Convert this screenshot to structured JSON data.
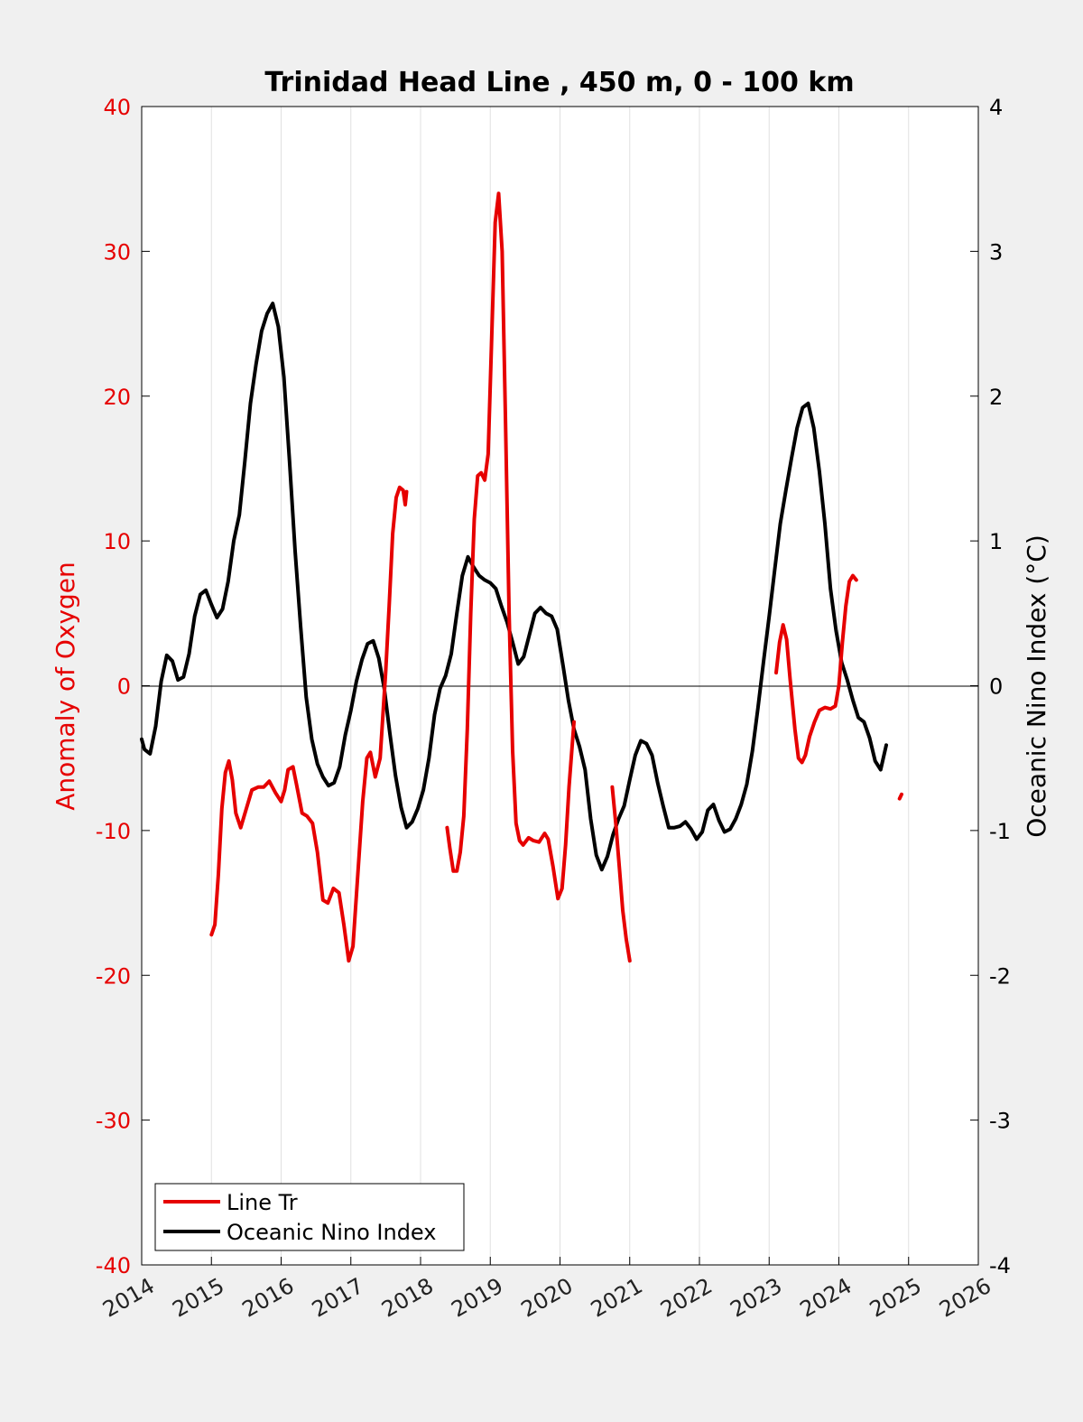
{
  "chart_data": {
    "type": "line",
    "title": "Trinidad Head Line , 450 m, 0 - 100 km",
    "xlabel": "",
    "ylabel_left": "Anomaly of Oxygen",
    "ylabel_right": "Oceanic Nino Index (°C)",
    "xlim": [
      2014,
      2026
    ],
    "ylim_left": [
      -40,
      40
    ],
    "ylim_right": [
      -4,
      4
    ],
    "x_ticks": [
      "2014",
      "2015",
      "2016",
      "2017",
      "2018",
      "2019",
      "2020",
      "2021",
      "2022",
      "2023",
      "2024",
      "2025",
      "2026"
    ],
    "y_ticks_left": [
      "40",
      "30",
      "20",
      "10",
      "0",
      "-10",
      "-20",
      "-30",
      "-40"
    ],
    "y_ticks_right": [
      "4",
      "3",
      "2",
      "1",
      "0",
      "-1",
      "-2",
      "-3",
      "-4"
    ],
    "grid": "vertical",
    "zero_line": true,
    "legend_position": "bottom-left",
    "colors": {
      "oxygen": "#e60000",
      "oni": "#000000",
      "plot_bg": "#ffffff",
      "figure_bg": "#f0f0f0",
      "grid": "#e0e0e0"
    },
    "series": [
      {
        "name": "Line Tr",
        "axis": "left",
        "segments": [
          [
            [
              2015.0,
              -17.2
            ],
            [
              2015.05,
              -16.5
            ],
            [
              2015.1,
              -13.0
            ],
            [
              2015.15,
              -8.5
            ],
            [
              2015.2,
              -6.0
            ],
            [
              2015.25,
              -5.2
            ],
            [
              2015.3,
              -6.5
            ],
            [
              2015.35,
              -8.8
            ],
            [
              2015.42,
              -9.8
            ],
            [
              2015.5,
              -8.5
            ],
            [
              2015.58,
              -7.2
            ],
            [
              2015.67,
              -7.0
            ],
            [
              2015.75,
              -7.0
            ],
            [
              2015.83,
              -6.6
            ],
            [
              2015.92,
              -7.4
            ],
            [
              2016.0,
              -8.0
            ],
            [
              2016.05,
              -7.2
            ],
            [
              2016.1,
              -5.8
            ],
            [
              2016.17,
              -5.6
            ],
            [
              2016.22,
              -6.8
            ],
            [
              2016.3,
              -8.8
            ],
            [
              2016.37,
              -9.0
            ],
            [
              2016.45,
              -9.5
            ],
            [
              2016.52,
              -11.5
            ],
            [
              2016.6,
              -14.8
            ],
            [
              2016.67,
              -15.0
            ],
            [
              2016.75,
              -14.0
            ],
            [
              2016.83,
              -14.3
            ],
            [
              2016.9,
              -16.5
            ],
            [
              2016.97,
              -19.0
            ],
            [
              2017.03,
              -18.0
            ],
            [
              2017.1,
              -13.0
            ],
            [
              2017.17,
              -8.0
            ],
            [
              2017.23,
              -5.0
            ],
            [
              2017.28,
              -4.6
            ],
            [
              2017.35,
              -6.3
            ],
            [
              2017.42,
              -5.0
            ],
            [
              2017.5,
              1.0
            ],
            [
              2017.55,
              5.5
            ],
            [
              2017.6,
              10.5
            ],
            [
              2017.65,
              13.0
            ],
            [
              2017.7,
              13.7
            ],
            [
              2017.75,
              13.5
            ],
            [
              2017.78,
              12.5
            ],
            [
              2017.8,
              13.4
            ]
          ],
          [
            [
              2018.38,
              -9.8
            ],
            [
              2018.42,
              -11.2
            ],
            [
              2018.47,
              -12.8
            ],
            [
              2018.52,
              -12.8
            ],
            [
              2018.57,
              -11.5
            ],
            [
              2018.62,
              -9.0
            ],
            [
              2018.67,
              -3.0
            ],
            [
              2018.72,
              5.0
            ],
            [
              2018.77,
              11.5
            ],
            [
              2018.82,
              14.5
            ],
            [
              2018.87,
              14.7
            ],
            [
              2018.92,
              14.2
            ],
            [
              2018.97,
              16.0
            ],
            [
              2019.02,
              24.0
            ],
            [
              2019.07,
              32.0
            ],
            [
              2019.12,
              34.0
            ],
            [
              2019.17,
              30.0
            ],
            [
              2019.22,
              18.0
            ],
            [
              2019.27,
              5.0
            ],
            [
              2019.32,
              -4.5
            ],
            [
              2019.37,
              -9.5
            ],
            [
              2019.42,
              -10.7
            ],
            [
              2019.47,
              -11.0
            ],
            [
              2019.55,
              -10.5
            ],
            [
              2019.62,
              -10.7
            ],
            [
              2019.7,
              -10.8
            ],
            [
              2019.78,
              -10.2
            ],
            [
              2019.83,
              -10.6
            ],
            [
              2019.9,
              -12.5
            ],
            [
              2019.97,
              -14.7
            ],
            [
              2020.03,
              -14.0
            ],
            [
              2020.08,
              -11.0
            ],
            [
              2020.13,
              -7.0
            ],
            [
              2020.2,
              -2.5
            ]
          ],
          [
            [
              2020.75,
              -7.0
            ],
            [
              2020.8,
              -9.5
            ],
            [
              2020.85,
              -12.5
            ],
            [
              2020.9,
              -15.5
            ],
            [
              2020.95,
              -17.5
            ],
            [
              2021.0,
              -19.0
            ]
          ],
          [
            [
              2023.1,
              0.9
            ],
            [
              2023.15,
              3.0
            ],
            [
              2023.2,
              4.2
            ],
            [
              2023.25,
              3.2
            ],
            [
              2023.3,
              0.5
            ],
            [
              2023.37,
              -3.0
            ],
            [
              2023.42,
              -5.0
            ],
            [
              2023.47,
              -5.3
            ],
            [
              2023.52,
              -4.8
            ],
            [
              2023.58,
              -3.5
            ],
            [
              2023.65,
              -2.5
            ],
            [
              2023.72,
              -1.7
            ],
            [
              2023.8,
              -1.5
            ],
            [
              2023.88,
              -1.6
            ],
            [
              2023.95,
              -1.4
            ],
            [
              2024.0,
              0.0
            ],
            [
              2024.05,
              3.0
            ],
            [
              2024.1,
              5.5
            ],
            [
              2024.15,
              7.2
            ],
            [
              2024.2,
              7.6
            ],
            [
              2024.25,
              7.3
            ]
          ],
          [
            [
              2024.87,
              -7.8
            ],
            [
              2024.9,
              -7.5
            ]
          ]
        ]
      },
      {
        "name": "Oceanic Nino Index",
        "axis": "right",
        "segments": [
          [
            [
              2014.0,
              -0.37
            ],
            [
              2014.04,
              -0.44
            ],
            [
              2014.12,
              -0.47
            ],
            [
              2014.2,
              -0.28
            ],
            [
              2014.28,
              0.03
            ],
            [
              2014.36,
              0.21
            ],
            [
              2014.44,
              0.17
            ],
            [
              2014.52,
              0.04
            ],
            [
              2014.6,
              0.06
            ],
            [
              2014.68,
              0.22
            ],
            [
              2014.76,
              0.48
            ],
            [
              2014.84,
              0.63
            ],
            [
              2014.92,
              0.66
            ],
            [
              2015.0,
              0.56
            ],
            [
              2015.08,
              0.47
            ],
            [
              2015.16,
              0.53
            ],
            [
              2015.24,
              0.72
            ],
            [
              2015.32,
              1.0
            ],
            [
              2015.4,
              1.18
            ],
            [
              2015.48,
              1.55
            ],
            [
              2015.56,
              1.95
            ],
            [
              2015.64,
              2.22
            ],
            [
              2015.72,
              2.45
            ],
            [
              2015.8,
              2.57
            ],
            [
              2015.88,
              2.64
            ],
            [
              2015.96,
              2.48
            ],
            [
              2016.04,
              2.13
            ],
            [
              2016.12,
              1.55
            ],
            [
              2016.2,
              0.93
            ],
            [
              2016.28,
              0.41
            ],
            [
              2016.36,
              -0.08
            ],
            [
              2016.44,
              -0.37
            ],
            [
              2016.52,
              -0.54
            ],
            [
              2016.6,
              -0.63
            ],
            [
              2016.68,
              -0.69
            ],
            [
              2016.76,
              -0.67
            ],
            [
              2016.84,
              -0.56
            ],
            [
              2016.92,
              -0.34
            ],
            [
              2017.0,
              -0.17
            ],
            [
              2017.08,
              0.03
            ],
            [
              2017.16,
              0.18
            ],
            [
              2017.24,
              0.29
            ],
            [
              2017.32,
              0.31
            ],
            [
              2017.4,
              0.19
            ],
            [
              2017.48,
              -0.02
            ],
            [
              2017.56,
              -0.33
            ],
            [
              2017.64,
              -0.62
            ],
            [
              2017.72,
              -0.84
            ],
            [
              2017.8,
              -0.98
            ],
            [
              2017.88,
              -0.94
            ],
            [
              2017.96,
              -0.85
            ],
            [
              2018.04,
              -0.72
            ],
            [
              2018.12,
              -0.5
            ],
            [
              2018.2,
              -0.2
            ],
            [
              2018.28,
              -0.02
            ],
            [
              2018.36,
              0.07
            ],
            [
              2018.44,
              0.22
            ],
            [
              2018.52,
              0.5
            ],
            [
              2018.6,
              0.76
            ],
            [
              2018.68,
              0.89
            ],
            [
              2018.76,
              0.82
            ],
            [
              2018.84,
              0.76
            ],
            [
              2018.92,
              0.73
            ],
            [
              2019.0,
              0.71
            ],
            [
              2019.08,
              0.67
            ],
            [
              2019.16,
              0.55
            ],
            [
              2019.24,
              0.44
            ],
            [
              2019.32,
              0.3
            ],
            [
              2019.4,
              0.15
            ],
            [
              2019.48,
              0.2
            ],
            [
              2019.56,
              0.35
            ],
            [
              2019.64,
              0.5
            ],
            [
              2019.72,
              0.54
            ],
            [
              2019.8,
              0.5
            ],
            [
              2019.88,
              0.48
            ],
            [
              2019.96,
              0.39
            ],
            [
              2020.04,
              0.15
            ],
            [
              2020.12,
              -0.1
            ],
            [
              2020.2,
              -0.3
            ],
            [
              2020.28,
              -0.42
            ],
            [
              2020.36,
              -0.58
            ],
            [
              2020.44,
              -0.92
            ],
            [
              2020.52,
              -1.17
            ],
            [
              2020.6,
              -1.27
            ],
            [
              2020.68,
              -1.18
            ],
            [
              2020.76,
              -1.03
            ],
            [
              2020.84,
              -0.92
            ],
            [
              2020.92,
              -0.83
            ],
            [
              2021.0,
              -0.65
            ],
            [
              2021.08,
              -0.48
            ],
            [
              2021.16,
              -0.38
            ],
            [
              2021.24,
              -0.4
            ],
            [
              2021.32,
              -0.48
            ],
            [
              2021.4,
              -0.67
            ],
            [
              2021.48,
              -0.83
            ],
            [
              2021.56,
              -0.98
            ],
            [
              2021.64,
              -0.98
            ],
            [
              2021.72,
              -0.97
            ],
            [
              2021.8,
              -0.94
            ],
            [
              2021.88,
              -0.99
            ],
            [
              2021.96,
              -1.06
            ],
            [
              2022.04,
              -1.01
            ],
            [
              2022.12,
              -0.86
            ],
            [
              2022.2,
              -0.82
            ],
            [
              2022.28,
              -0.93
            ],
            [
              2022.36,
              -1.01
            ],
            [
              2022.44,
              -0.99
            ],
            [
              2022.52,
              -0.92
            ],
            [
              2022.6,
              -0.82
            ],
            [
              2022.68,
              -0.68
            ],
            [
              2022.76,
              -0.45
            ],
            [
              2022.84,
              -0.15
            ],
            [
              2022.92,
              0.17
            ],
            [
              2023.0,
              0.48
            ],
            [
              2023.08,
              0.8
            ],
            [
              2023.16,
              1.12
            ],
            [
              2023.24,
              1.35
            ],
            [
              2023.32,
              1.57
            ],
            [
              2023.4,
              1.78
            ],
            [
              2023.48,
              1.92
            ],
            [
              2023.56,
              1.95
            ],
            [
              2023.64,
              1.78
            ],
            [
              2023.72,
              1.48
            ],
            [
              2023.8,
              1.12
            ],
            [
              2023.88,
              0.67
            ],
            [
              2023.96,
              0.38
            ],
            [
              2024.04,
              0.16
            ],
            [
              2024.12,
              0.04
            ],
            [
              2024.2,
              -0.1
            ],
            [
              2024.28,
              -0.22
            ],
            [
              2024.36,
              -0.25
            ],
            [
              2024.44,
              -0.36
            ],
            [
              2024.52,
              -0.52
            ],
            [
              2024.6,
              -0.58
            ],
            [
              2024.68,
              -0.41
            ]
          ]
        ]
      }
    ]
  },
  "legend": {
    "items": [
      {
        "label": "Line Tr",
        "color": "#e60000"
      },
      {
        "label": "Oceanic Nino Index",
        "color": "#000000"
      }
    ]
  }
}
